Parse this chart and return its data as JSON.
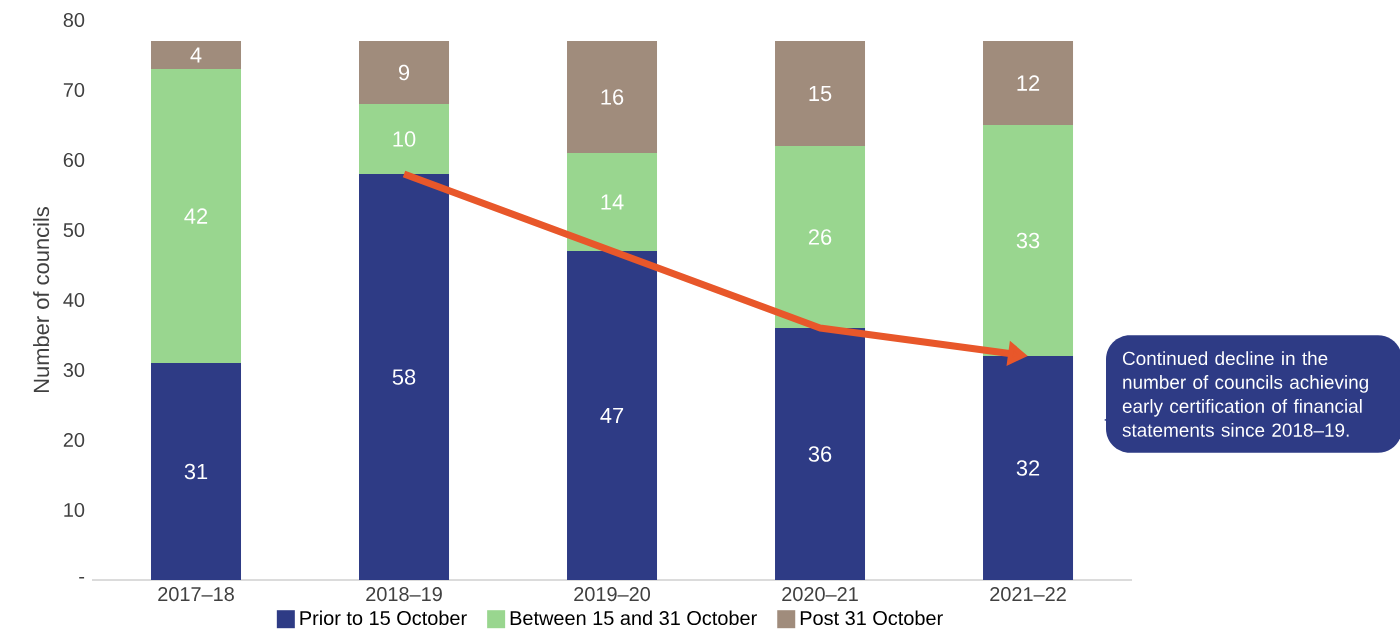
{
  "chart_data": {
    "type": "bar",
    "stacked": true,
    "categories": [
      "2017–18",
      "2018–19",
      "2019–20",
      "2020–21",
      "2021–22"
    ],
    "ylabel": "Number of councils",
    "ylim": [
      0,
      80
    ],
    "yticks": [
      {
        "value": 0,
        "label": "-"
      },
      10,
      20,
      30,
      40,
      50,
      60,
      70,
      80
    ],
    "series": [
      {
        "name": "Prior to 15 October",
        "color": "#2e3b85",
        "values": [
          31,
          58,
          47,
          36,
          32
        ]
      },
      {
        "name": "Between 15 and 31 October",
        "color": "#99d68f",
        "values": [
          42,
          10,
          14,
          26,
          33
        ]
      },
      {
        "name": "Post 31 October",
        "color": "#a08c7c",
        "values": [
          4,
          9,
          16,
          15,
          12
        ]
      }
    ],
    "data_labels": true,
    "legend": "bottom",
    "grid": false,
    "annotations": [
      "Continued decline in the number of councils achieving early certification of financial statements since 2018–19."
    ]
  }
}
